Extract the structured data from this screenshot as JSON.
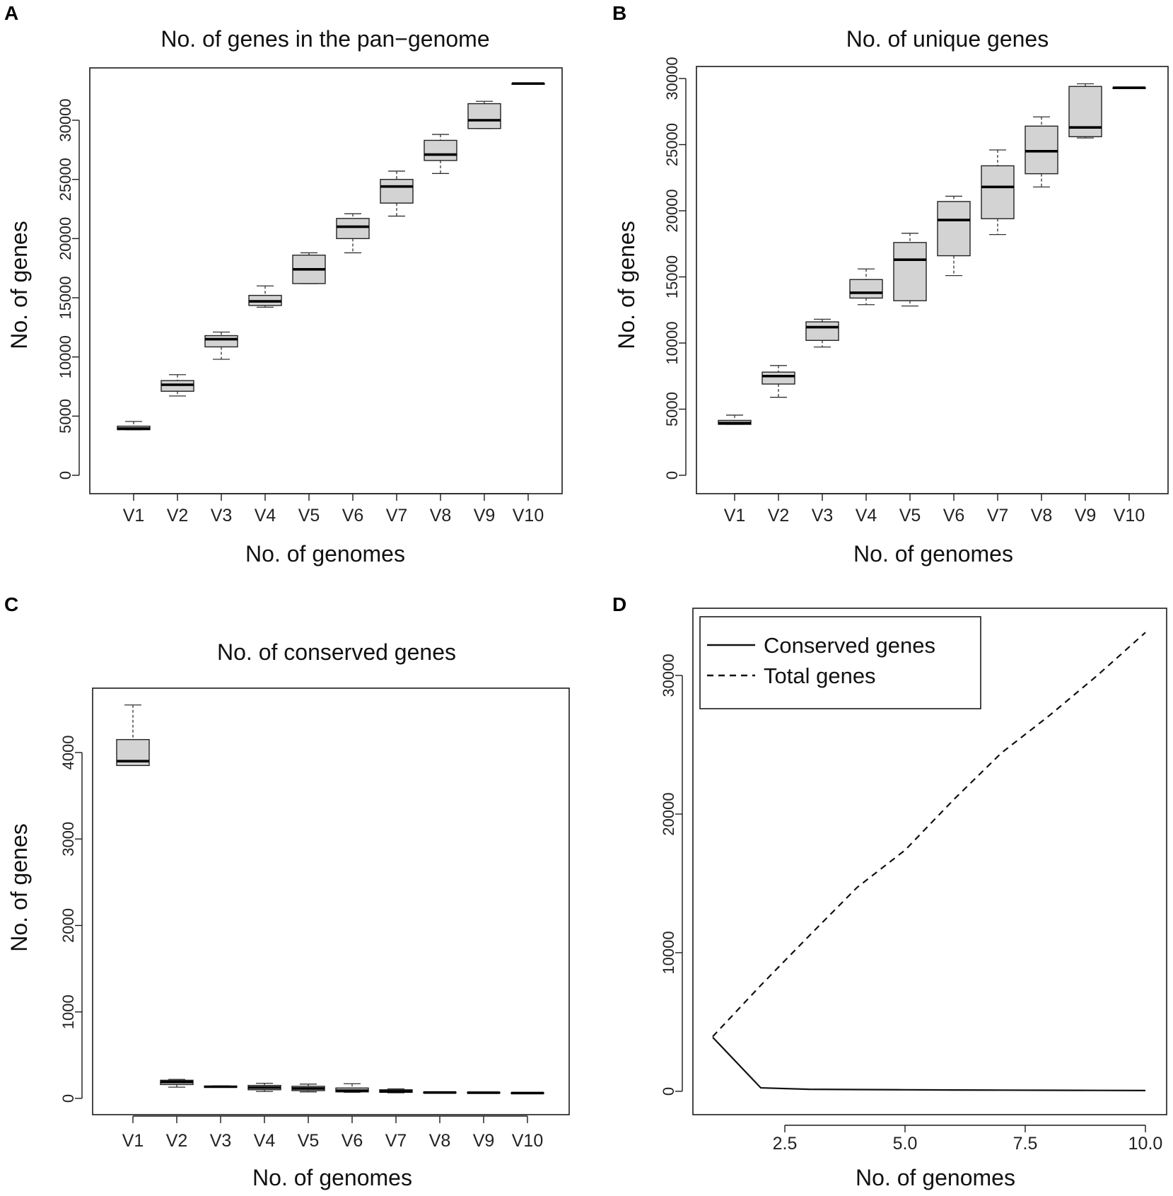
{
  "chart_data": [
    {
      "panel": "A",
      "type": "box",
      "title": "No. of genes in the pan−genome",
      "xlabel": "No. of genomes",
      "ylabel": "No. of genes",
      "ylim": [
        0,
        33000
      ],
      "yticks": [
        0,
        5000,
        10000,
        15000,
        20000,
        25000,
        30000
      ],
      "categories": [
        "V1",
        "V2",
        "V3",
        "V4",
        "V5",
        "V6",
        "V7",
        "V8",
        "V9",
        "V10"
      ],
      "boxes": [
        {
          "min": 3850,
          "q1": 3850,
          "median": 3950,
          "q3": 4150,
          "max": 4550
        },
        {
          "min": 6700,
          "q1": 7100,
          "median": 7650,
          "q3": 8000,
          "max": 8500
        },
        {
          "min": 9800,
          "q1": 10850,
          "median": 11500,
          "q3": 11800,
          "max": 12100
        },
        {
          "min": 14200,
          "q1": 14350,
          "median": 14700,
          "q3": 15200,
          "max": 16000
        },
        {
          "min": 16200,
          "q1": 16200,
          "median": 17400,
          "q3": 18600,
          "max": 18800
        },
        {
          "min": 18800,
          "q1": 20000,
          "median": 21000,
          "q3": 21700,
          "max": 22100
        },
        {
          "min": 21900,
          "q1": 23000,
          "median": 24400,
          "q3": 25000,
          "max": 25700
        },
        {
          "min": 25500,
          "q1": 26600,
          "median": 27100,
          "q3": 28300,
          "max": 28800
        },
        {
          "min": 29300,
          "q1": 29300,
          "median": 30000,
          "q3": 31400,
          "max": 31600
        },
        {
          "min": 33100,
          "q1": 33100,
          "median": 33100,
          "q3": 33100,
          "max": 33100
        }
      ]
    },
    {
      "panel": "B",
      "type": "box",
      "title": "No. of unique genes",
      "xlabel": "No. of genomes",
      "ylabel": "No. of genes",
      "ylim": [
        0,
        30000
      ],
      "yticks": [
        0,
        5000,
        10000,
        15000,
        20000,
        25000,
        30000
      ],
      "categories": [
        "V1",
        "V2",
        "V3",
        "V4",
        "V5",
        "V6",
        "V7",
        "V8",
        "V9",
        "V10"
      ],
      "boxes": [
        {
          "min": 3850,
          "q1": 3850,
          "median": 3950,
          "q3": 4150,
          "max": 4550
        },
        {
          "min": 5900,
          "q1": 6900,
          "median": 7500,
          "q3": 7800,
          "max": 8300
        },
        {
          "min": 9700,
          "q1": 10200,
          "median": 11200,
          "q3": 11600,
          "max": 11800
        },
        {
          "min": 12900,
          "q1": 13400,
          "median": 13800,
          "q3": 14800,
          "max": 15600
        },
        {
          "min": 12800,
          "q1": 13200,
          "median": 16300,
          "q3": 17600,
          "max": 18300
        },
        {
          "min": 15100,
          "q1": 16600,
          "median": 19300,
          "q3": 20700,
          "max": 21100
        },
        {
          "min": 18200,
          "q1": 19400,
          "median": 21800,
          "q3": 23400,
          "max": 24600
        },
        {
          "min": 21800,
          "q1": 22800,
          "median": 24500,
          "q3": 26400,
          "max": 27100
        },
        {
          "min": 25500,
          "q1": 25600,
          "median": 26300,
          "q3": 29400,
          "max": 29600
        },
        {
          "min": 29300,
          "q1": 29300,
          "median": 29300,
          "q3": 29300,
          "max": 29300
        }
      ]
    },
    {
      "panel": "C",
      "type": "box",
      "title": "No. of conserved genes",
      "xlabel": "No. of genomes",
      "ylabel": "No. of genes",
      "ylim": [
        0,
        4700
      ],
      "yticks": [
        0,
        1000,
        2000,
        3000,
        4000
      ],
      "categories": [
        "V1",
        "V2",
        "V3",
        "V4",
        "V5",
        "V6",
        "V7",
        "V8",
        "V9",
        "V10"
      ],
      "boxes": [
        {
          "min": 3850,
          "q1": 3850,
          "median": 3900,
          "q3": 4150,
          "max": 4550
        },
        {
          "min": 130,
          "q1": 160,
          "median": 190,
          "q3": 210,
          "max": 220
        },
        {
          "min": 130,
          "q1": 130,
          "median": 135,
          "q3": 140,
          "max": 145
        },
        {
          "min": 80,
          "q1": 100,
          "median": 125,
          "q3": 150,
          "max": 175
        },
        {
          "min": 75,
          "q1": 90,
          "median": 115,
          "q3": 140,
          "max": 165
        },
        {
          "min": 70,
          "q1": 75,
          "median": 90,
          "q3": 120,
          "max": 170
        },
        {
          "min": 65,
          "q1": 70,
          "median": 80,
          "q3": 100,
          "max": 110
        },
        {
          "min": 65,
          "q1": 65,
          "median": 68,
          "q3": 72,
          "max": 75
        },
        {
          "min": 63,
          "q1": 63,
          "median": 66,
          "q3": 70,
          "max": 72
        },
        {
          "min": 60,
          "q1": 60,
          "median": 62,
          "q3": 64,
          "max": 66
        }
      ]
    },
    {
      "panel": "D",
      "type": "line",
      "xlabel": "No. of genomes",
      "xlim": [
        1,
        10
      ],
      "ylim": [
        0,
        33000
      ],
      "xticks": [
        "2.5",
        "5.0",
        "7.5",
        "10.0"
      ],
      "xtick_values": [
        2.5,
        5.0,
        7.5,
        10.0
      ],
      "yticks": [
        0,
        10000,
        20000,
        30000
      ],
      "legend": [
        "Conserved  genes",
        "Total genes"
      ],
      "legend_position": "top-left",
      "x": [
        1,
        2,
        3,
        4,
        5,
        6,
        7,
        8,
        9,
        10
      ],
      "series": [
        {
          "name": "Conserved  genes",
          "style": "solid",
          "values": [
            3900,
            250,
            150,
            130,
            110,
            95,
            85,
            75,
            65,
            55
          ]
        },
        {
          "name": "Total genes",
          "style": "dashed",
          "values": [
            3950,
            7650,
            11200,
            14700,
            17400,
            21000,
            24400,
            27100,
            30000,
            33100
          ]
        }
      ]
    }
  ]
}
